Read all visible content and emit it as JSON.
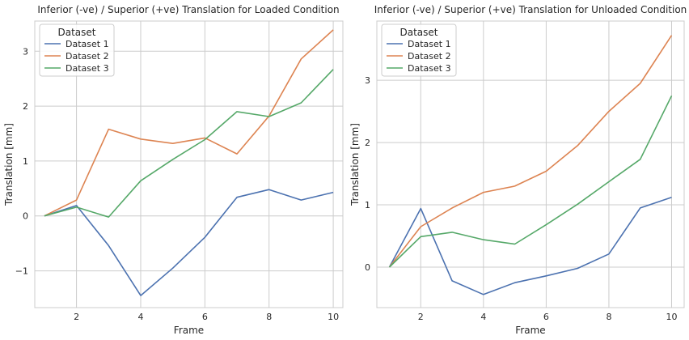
{
  "chart_data": [
    {
      "type": "line",
      "title": "Inferior (-ve) / Superior (+ve) Translation for Loaded Condition",
      "xlabel": "Frame",
      "ylabel": "Translation [mm]",
      "xlim": [
        0.7,
        10.3
      ],
      "ylim": [
        -1.67,
        3.55
      ],
      "xticks": [
        2,
        4,
        6,
        8,
        10
      ],
      "yticks": [
        -1,
        0,
        1,
        2,
        3
      ],
      "grid": true,
      "legend": {
        "title": "Dataset",
        "placement": "top-left"
      },
      "x": [
        1,
        2,
        3,
        4,
        5,
        6,
        7,
        8,
        9,
        10
      ],
      "series": [
        {
          "name": "Dataset 1",
          "color": "#4c72b0",
          "values": [
            0,
            0.19,
            -0.54,
            -1.45,
            -0.95,
            -0.39,
            0.34,
            0.48,
            0.29,
            0.43
          ]
        },
        {
          "name": "Dataset 2",
          "color": "#dd8452",
          "values": [
            0,
            0.29,
            1.58,
            1.4,
            1.32,
            1.42,
            1.13,
            1.82,
            2.86,
            3.39
          ]
        },
        {
          "name": "Dataset 3",
          "color": "#55a868",
          "values": [
            0,
            0.16,
            -0.02,
            0.64,
            1.03,
            1.39,
            1.9,
            1.81,
            2.06,
            2.67
          ]
        }
      ]
    },
    {
      "type": "line",
      "title": "Inferior (-ve) /   Superior (+ve) Translation for Unloaded Condition",
      "xlabel": "Frame",
      "ylabel": "Translation [mm]",
      "xlim": [
        0.6,
        10.4
      ],
      "ylim": [
        -0.65,
        3.95
      ],
      "xticks": [
        2,
        4,
        6,
        8,
        10
      ],
      "yticks": [
        0,
        1,
        2,
        3
      ],
      "grid": true,
      "legend": {
        "title": "Dataset",
        "placement": "top-left"
      },
      "x": [
        1,
        2,
        3,
        4,
        5,
        6,
        7,
        8,
        9,
        10
      ],
      "series": [
        {
          "name": "Dataset 1",
          "color": "#4c72b0",
          "values": [
            0,
            0.94,
            -0.22,
            -0.44,
            -0.25,
            -0.14,
            -0.02,
            0.21,
            0.95,
            1.12
          ]
        },
        {
          "name": "Dataset 2",
          "color": "#dd8452",
          "values": [
            0,
            0.65,
            0.95,
            1.2,
            1.3,
            1.54,
            1.95,
            2.5,
            2.95,
            3.72
          ]
        },
        {
          "name": "Dataset 3",
          "color": "#55a868",
          "values": [
            0,
            0.49,
            0.56,
            0.44,
            0.37,
            0.68,
            1.01,
            1.37,
            1.73,
            2.75
          ]
        }
      ]
    }
  ]
}
